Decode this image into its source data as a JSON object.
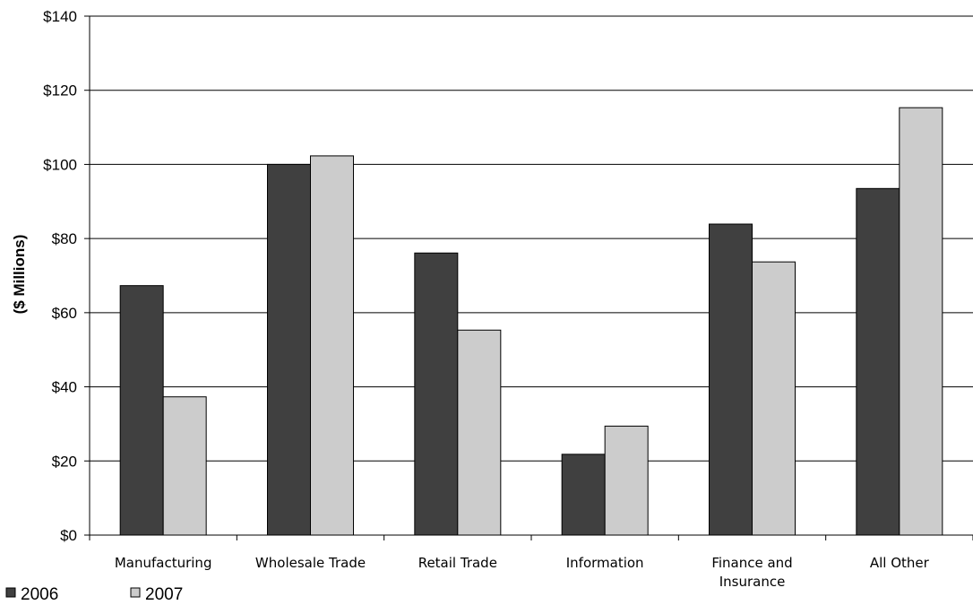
{
  "chart_data": {
    "type": "bar",
    "ylabel": "($ Millions)",
    "xlabel": "",
    "ylim": [
      0,
      140
    ],
    "y_ticks": [
      "$0",
      "$20",
      "$40",
      "$60",
      "$80",
      "$100",
      "$120",
      "$140"
    ],
    "y_tick_values": [
      0,
      20,
      40,
      60,
      80,
      100,
      120,
      140
    ],
    "grid": true,
    "legend_position": "bottom-left",
    "categories": [
      [
        "Manufacturing"
      ],
      [
        "Wholesale Trade"
      ],
      [
        "Retail Trade"
      ],
      [
        "Information"
      ],
      [
        "Finance and",
        "Insurance"
      ],
      [
        "All Other"
      ]
    ],
    "series": [
      {
        "name": "2006",
        "color": "#404040",
        "values": [
          67.3,
          100.0,
          76.1,
          21.8,
          83.9,
          93.5
        ]
      },
      {
        "name": "2007",
        "color": "#cccccc",
        "values": [
          37.3,
          102.3,
          55.3,
          29.4,
          73.7,
          115.3
        ]
      }
    ]
  }
}
